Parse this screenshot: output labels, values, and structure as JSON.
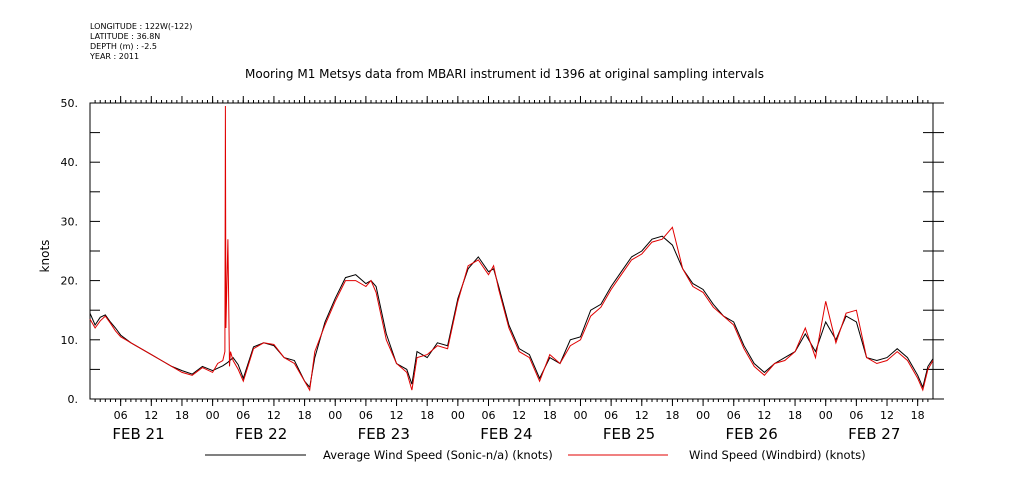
{
  "header": {
    "longitude": "LONGITUDE : 122W(-122)",
    "latitude": "LATITUDE : 36.8N",
    "depth": "DEPTH (m) : -2.5",
    "year": "YEAR : 2011"
  },
  "chart_data": {
    "type": "line",
    "title": "Mooring M1 Metsys data from MBARI instrument id 1396 at original sampling intervals",
    "ylabel": "knots",
    "ylim": [
      0,
      50
    ],
    "yticks": [
      "0.",
      "10.",
      "20.",
      "30.",
      "40.",
      "50."
    ],
    "ytick_values": [
      0,
      10,
      20,
      30,
      40,
      50
    ],
    "xlim_hours": [
      0,
      165
    ],
    "hour_tick_labels": [
      "06",
      "12",
      "18",
      "00",
      "06",
      "12",
      "18",
      "00",
      "06",
      "12",
      "18",
      "00",
      "06",
      "12",
      "18",
      "00",
      "06",
      "12",
      "18",
      "00",
      "06",
      "12",
      "18",
      "00",
      "06",
      "12",
      "18"
    ],
    "hour_tick_values": [
      6,
      12,
      18,
      24,
      30,
      36,
      42,
      48,
      54,
      60,
      66,
      72,
      78,
      84,
      90,
      96,
      102,
      108,
      114,
      120,
      126,
      132,
      138,
      144,
      150,
      156,
      162
    ],
    "day_labels": [
      "FEB 21",
      "FEB 22",
      "FEB 23",
      "FEB 24",
      "FEB 25",
      "FEB 26",
      "FEB 27"
    ],
    "day_label_centers_hours": [
      9.5,
      33.5,
      57.5,
      81.5,
      105.5,
      129.5,
      153.5
    ],
    "x_unit": "hours from 00:00 FEB 21 2011",
    "legend_position": "bottom",
    "series": [
      {
        "name": "Average Wind Speed (Sonic-n/a) (knots)",
        "color": "#000000",
        "x": [
          0,
          1,
          2,
          3,
          4,
          5,
          6,
          8,
          10,
          12,
          14,
          16,
          18,
          20,
          22,
          24,
          26,
          27,
          28,
          29,
          30,
          32,
          34,
          36,
          38,
          40,
          42,
          43,
          44,
          46,
          48,
          50,
          52,
          54,
          55,
          56,
          58,
          60,
          62,
          63,
          64,
          66,
          68,
          70,
          72,
          74,
          76,
          78,
          79,
          80,
          82,
          84,
          86,
          88,
          90,
          92,
          94,
          96,
          98,
          100,
          102,
          104,
          106,
          108,
          110,
          112,
          114,
          116,
          118,
          120,
          122,
          124,
          126,
          128,
          130,
          132,
          134,
          136,
          138,
          140,
          142,
          144,
          146,
          148,
          150,
          152,
          154,
          156,
          158,
          160,
          162,
          163,
          164,
          165
        ],
        "values": [
          14.5,
          12.5,
          13.8,
          14.2,
          13,
          12,
          10.8,
          9.5,
          8.5,
          7.5,
          6.5,
          5.5,
          4.8,
          4.2,
          5.5,
          4.8,
          5.6,
          6.2,
          7.0,
          5.8,
          3.5,
          8.8,
          9.5,
          9,
          7,
          6.5,
          3.0,
          2.0,
          7,
          13,
          17,
          20.5,
          21,
          19.5,
          20,
          19,
          11,
          6,
          5,
          2.5,
          8,
          7,
          9.5,
          9,
          17,
          22,
          24,
          21.5,
          22,
          19,
          12.5,
          8.5,
          7.5,
          3.5,
          7,
          6,
          10,
          10.5,
          15,
          16,
          19,
          21.5,
          24,
          25,
          27,
          27.5,
          26,
          22,
          19.5,
          18.5,
          16,
          14,
          13,
          9,
          6,
          4.5,
          6,
          7,
          8,
          11,
          8,
          13,
          10,
          14,
          13,
          7,
          6.5,
          7,
          8.5,
          7,
          4,
          2.0,
          5.5,
          6.8
        ]
      },
      {
        "name": "Wind Speed (Windbird) (knots)",
        "color": "#e00000",
        "x": [
          0,
          1,
          2,
          3,
          4,
          5,
          6,
          8,
          10,
          12,
          14,
          16,
          18,
          20,
          22,
          24,
          25,
          26,
          26.4,
          26.5,
          26.6,
          27,
          27.3,
          27.5,
          28,
          29,
          30,
          32,
          34,
          36,
          38,
          40,
          42,
          43,
          44,
          46,
          48,
          50,
          52,
          54,
          55,
          56,
          58,
          60,
          62,
          63,
          64,
          66,
          68,
          70,
          72,
          74,
          76,
          78,
          79,
          80,
          82,
          84,
          86,
          88,
          90,
          92,
          94,
          96,
          98,
          100,
          102,
          104,
          106,
          108,
          110,
          112,
          114,
          116,
          118,
          120,
          122,
          124,
          126,
          128,
          130,
          132,
          134,
          136,
          138,
          140,
          142,
          144,
          146,
          148,
          150,
          152,
          154,
          156,
          158,
          160,
          162,
          163,
          164,
          165
        ],
        "values": [
          13.5,
          12,
          13.2,
          14,
          12.8,
          11.5,
          10.5,
          9.5,
          8.5,
          7.5,
          6.5,
          5.5,
          4.5,
          4.0,
          5.3,
          4.5,
          6,
          6.5,
          8,
          49.5,
          12,
          27,
          5.5,
          8,
          6.5,
          5,
          3.0,
          8.5,
          9.5,
          9.2,
          7,
          6,
          3,
          1.5,
          8,
          12.5,
          16.5,
          20,
          20,
          19,
          20,
          18,
          10,
          6,
          4.5,
          1.5,
          7,
          7.5,
          9,
          8.5,
          16.5,
          22.5,
          23.5,
          21,
          22.5,
          18.5,
          12,
          8,
          7,
          3,
          7.5,
          6,
          9,
          10,
          14,
          15.5,
          18.5,
          21,
          23.5,
          24.5,
          26.5,
          27,
          29,
          22,
          19,
          18,
          15.5,
          14,
          12.5,
          8.5,
          5.5,
          4,
          6,
          6.5,
          8,
          12,
          7,
          16.5,
          9.5,
          14.5,
          15,
          7,
          6,
          6.5,
          8,
          6.5,
          3.5,
          1.5,
          5,
          6.5
        ]
      }
    ]
  }
}
